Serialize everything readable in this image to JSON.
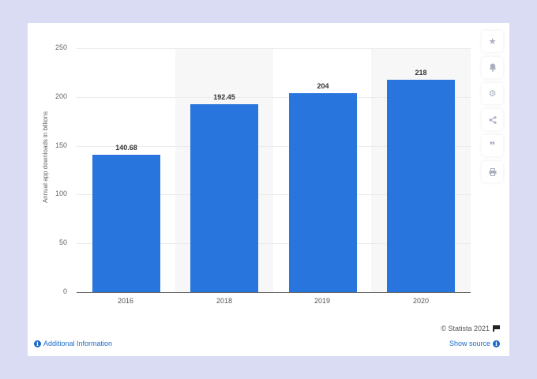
{
  "chart_data": {
    "type": "bar",
    "title": "",
    "xlabel": "",
    "ylabel": "Annual app downloads in billions",
    "categories": [
      "2016",
      "2018",
      "2019",
      "2020"
    ],
    "values": [
      140.68,
      192.45,
      204,
      218
    ],
    "value_labels": [
      "140.68",
      "192.45",
      "204",
      "218"
    ],
    "yticks": [
      "0",
      "50",
      "100",
      "150",
      "200",
      "250"
    ],
    "ylim": [
      0,
      250
    ],
    "grid": true,
    "legend": null,
    "bar_color": "#2876dd"
  },
  "sidebar": {
    "buttons": [
      {
        "name": "favorite",
        "glyph": "★"
      },
      {
        "name": "notification",
        "glyph": "🔔"
      },
      {
        "name": "settings",
        "glyph": "⚙"
      },
      {
        "name": "share",
        "glyph": "<"
      },
      {
        "name": "cite",
        "glyph": "❞"
      },
      {
        "name": "print",
        "glyph": "⎙"
      }
    ]
  },
  "footer": {
    "credit": "© Statista 2021",
    "additional_info": "Additional Information",
    "show_source": "Show source",
    "info_glyph": "i"
  }
}
